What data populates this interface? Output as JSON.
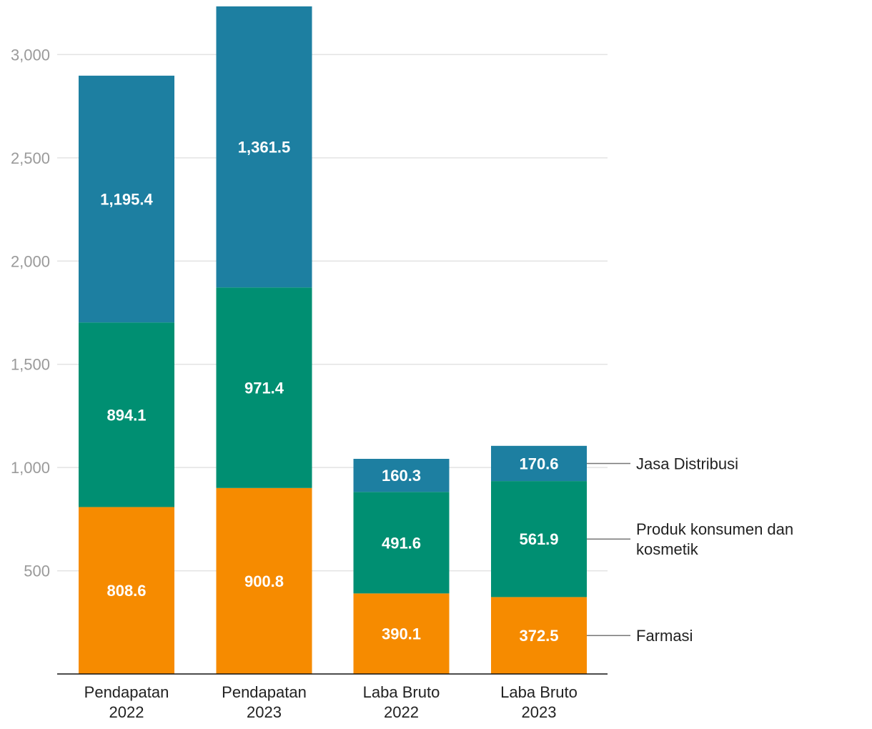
{
  "chart_data": {
    "type": "bar",
    "stacked": true,
    "categories": [
      [
        "Pendapatan",
        "2022"
      ],
      [
        "Pendapatan",
        "2023"
      ],
      [
        "Laba Bruto",
        "2022"
      ],
      [
        "Laba Bruto",
        "2023"
      ]
    ],
    "series": [
      {
        "name": "Farmasi",
        "color": "#F68B00",
        "values": [
          808.6,
          900.8,
          390.1,
          372.5
        ],
        "labels": [
          "808.6",
          "900.8",
          "390.1",
          "372.5"
        ]
      },
      {
        "name": "Produk konsumen dan kosmetik",
        "color": "#008F72",
        "values": [
          894.1,
          971.4,
          491.6,
          561.9
        ],
        "labels": [
          "894.1",
          "971.4",
          "491.6",
          "561.9"
        ]
      },
      {
        "name": "Jasa Distribusi",
        "color": "#1D7FA1",
        "values": [
          1195.4,
          1361.5,
          160.3,
          170.6
        ],
        "labels": [
          "1,195.4",
          "1,361.5",
          "160.3",
          "170.6"
        ]
      }
    ],
    "yticks": [
      500,
      1000,
      1500,
      2000,
      2500,
      3000
    ],
    "ytick_labels": [
      "500",
      "1,000",
      "1,500",
      "2,000",
      "2,500",
      "3,000"
    ],
    "ylim": [
      0,
      3230
    ],
    "grid": true,
    "legend": "right, labels attached to last bar",
    "title": "",
    "xlabel": "",
    "ylabel": ""
  }
}
